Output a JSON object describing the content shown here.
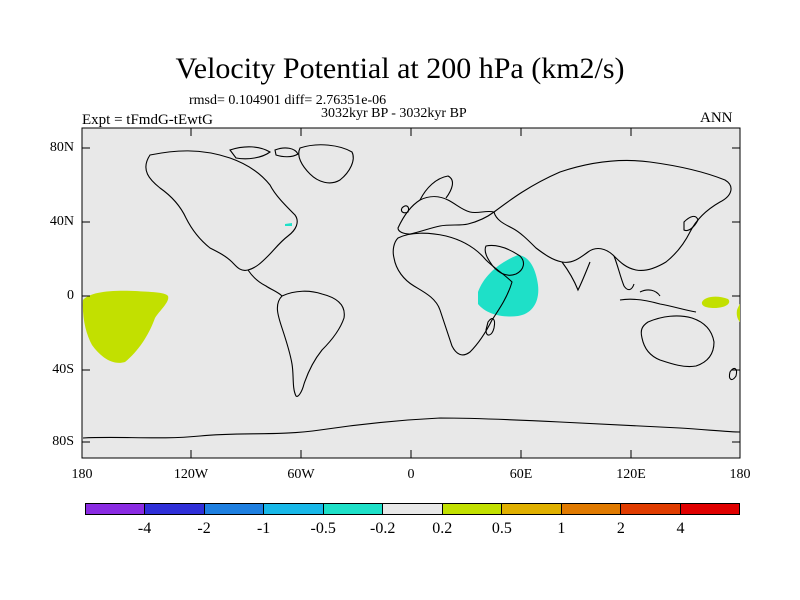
{
  "title": "Velocity Potential at 200 hPa (km2/s)",
  "stats": "rmsd= 0.104901 diff= 2.76351e-06",
  "period": "3032kyr BP - 3032kyr BP",
  "experiment": "Expt = tFmdG-tEwtG",
  "season": "ANN",
  "lat_labels": [
    "80N",
    "40N",
    "0",
    "40S",
    "80S"
  ],
  "lon_labels": [
    "180",
    "120W",
    "60W",
    "0",
    "60E",
    "120E",
    "180"
  ],
  "colorbar": {
    "colors": [
      "#8a2be2",
      "#2f2fd8",
      "#1e7fe0",
      "#18b8e8",
      "#1ee0c8",
      "#e8e8e8",
      "#c2e000",
      "#e0b000",
      "#e07a00",
      "#e03c00",
      "#e00000"
    ],
    "labels": [
      "-4",
      "-2",
      "-1",
      "-0.5",
      "-0.2",
      "0.2",
      "0.5",
      "1",
      "2",
      "4"
    ]
  },
  "colors": {
    "ocean_land_background": "#e8e8e8",
    "positive_anomaly": "#c2e000",
    "negative_anomaly": "#1ee0c8"
  }
}
